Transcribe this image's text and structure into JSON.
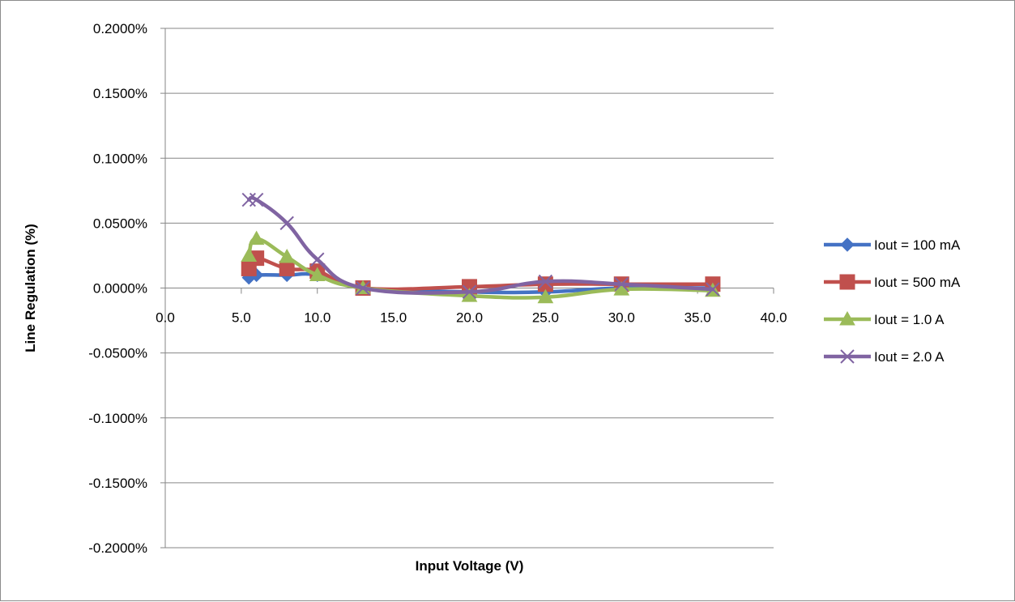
{
  "chart_data": {
    "type": "line",
    "title": "",
    "xlabel": "Input Voltage (V)",
    "ylabel": "Line Regulation (%)",
    "xlim": [
      0,
      40
    ],
    "ylim": [
      -0.002,
      0.002
    ],
    "x_ticks": [
      "0.0",
      "5.0",
      "10.0",
      "15.0",
      "20.0",
      "25.0",
      "30.0",
      "35.0",
      "40.0"
    ],
    "y_ticks": [
      "0.2000%",
      "0.1500%",
      "0.1000%",
      "0.0500%",
      "0.0000%",
      "-0.0500%",
      "-0.1000%",
      "-0.1500%",
      "-0.2000%"
    ],
    "grid": "horizontal",
    "legend_position": "right",
    "series": [
      {
        "name": "Iout = 100 mA",
        "color": "#4472C4",
        "marker": "diamond",
        "points": [
          [
            5.5,
            8e-05
          ],
          [
            6,
            0.0001
          ],
          [
            8,
            0.0001
          ],
          [
            10,
            0.0001
          ],
          [
            13,
            0.0
          ],
          [
            20,
            -3e-05
          ],
          [
            25,
            -3e-05
          ],
          [
            30,
            0.0
          ],
          [
            36,
            0.0
          ]
        ]
      },
      {
        "name": "Iout = 500 mA",
        "color": "#C0504D",
        "marker": "square",
        "points": [
          [
            5.5,
            0.00015
          ],
          [
            6,
            0.00023
          ],
          [
            8,
            0.00015
          ],
          [
            10,
            0.00013
          ],
          [
            13,
            0.0
          ],
          [
            20,
            1e-05
          ],
          [
            25,
            3e-05
          ],
          [
            30,
            3e-05
          ],
          [
            36,
            3e-05
          ]
        ]
      },
      {
        "name": "Iout = 1.0 A",
        "color": "#9BBB59",
        "marker": "triangle",
        "points": [
          [
            5.5,
            0.00025
          ],
          [
            6,
            0.00038
          ],
          [
            8,
            0.00024
          ],
          [
            10,
            0.0001
          ],
          [
            13,
            0.0
          ],
          [
            20,
            -6e-05
          ],
          [
            25,
            -7e-05
          ],
          [
            30,
            -1e-05
          ],
          [
            36,
            -2e-05
          ]
        ]
      },
      {
        "name": "Iout = 2.0 A",
        "color": "#8064A2",
        "marker": "x",
        "points": [
          [
            5.5,
            0.00068
          ],
          [
            6,
            0.00068
          ],
          [
            8,
            0.0005
          ],
          [
            10,
            0.00022
          ],
          [
            13,
            0.0
          ],
          [
            20,
            -3e-05
          ],
          [
            25,
            5e-05
          ],
          [
            30,
            3e-05
          ],
          [
            36,
            -1e-05
          ]
        ]
      }
    ]
  }
}
